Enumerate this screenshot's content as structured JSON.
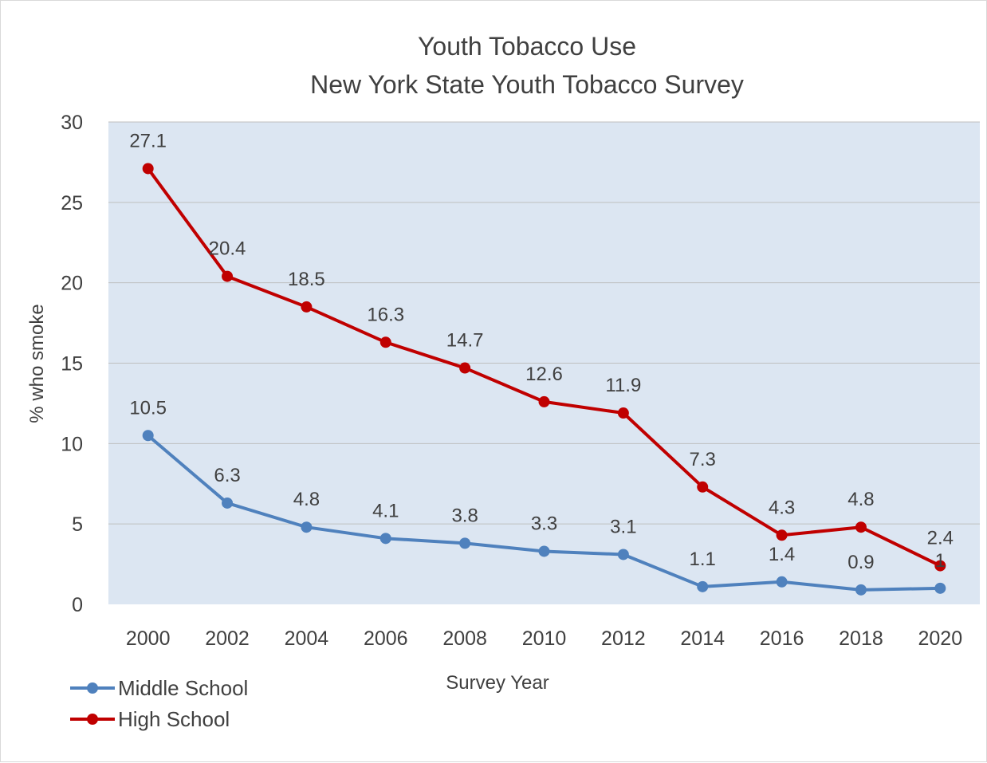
{
  "chart_data": {
    "type": "line",
    "title": "Youth Tobacco Use",
    "subtitle": "New York State Youth Tobacco Survey",
    "xlabel": "Survey Year",
    "ylabel": "% who smoke",
    "categories": [
      "2000",
      "2002",
      "2004",
      "2006",
      "2008",
      "2010",
      "2012",
      "2014",
      "2016",
      "2018",
      "2020"
    ],
    "ylim": [
      0,
      30
    ],
    "yticks": [
      0,
      5,
      10,
      15,
      20,
      25,
      30
    ],
    "grid": true,
    "legend_position": "bottom-left",
    "series": [
      {
        "name": "Middle School",
        "color": "#4f81bd",
        "values": [
          10.5,
          6.3,
          4.8,
          4.1,
          3.8,
          3.3,
          3.1,
          1.1,
          1.4,
          0.9,
          1
        ],
        "labels": [
          "10.5",
          "6.3",
          "4.8",
          "4.1",
          "3.8",
          "3.3",
          "3.1",
          "1.1",
          "1.4",
          "0.9",
          "1"
        ]
      },
      {
        "name": "High School",
        "color": "#c00000",
        "values": [
          27.1,
          20.4,
          18.5,
          16.3,
          14.7,
          12.6,
          11.9,
          7.3,
          4.3,
          4.8,
          2.4
        ],
        "labels": [
          "27.1",
          "20.4",
          "18.5",
          "16.3",
          "14.7",
          "12.6",
          "11.9",
          "7.3",
          "4.3",
          "4.8",
          "2.4"
        ]
      }
    ],
    "plot_background": "#dce6f2",
    "gridline_color": "#bfbfbf"
  }
}
